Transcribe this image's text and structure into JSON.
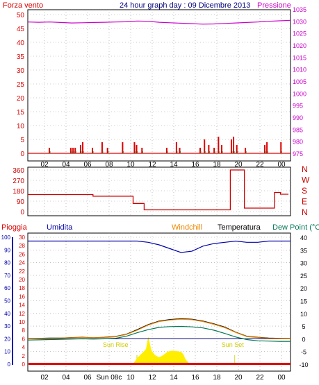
{
  "title": "24 hour graph day : 09 Dicembre 2013",
  "colors": {
    "title": "#000080",
    "wind": "#dd0000",
    "pressure": "#cc00cc",
    "direction": "#cc0000",
    "rain": "#dd0000",
    "humidity": "#0000aa",
    "windchill": "#ee8800",
    "temperature": "#000000",
    "dewpoint": "#007755",
    "grid": "#999999",
    "sun": "#ffee00",
    "sun_label": "#cccc00"
  },
  "panel_top": {
    "left_label": "Forza vento",
    "right_label": "Pressione",
    "left_ticks": [
      "0",
      "5",
      "10",
      "15",
      "20",
      "25",
      "30",
      "35",
      "40",
      "45",
      "50"
    ],
    "right_ticks": [
      "975",
      "980",
      "985",
      "990",
      "995",
      "1000",
      "1005",
      "1010",
      "1015",
      "1020",
      "1025",
      "1030",
      "1035"
    ]
  },
  "panel_mid": {
    "left_ticks": [
      "0",
      "90",
      "180",
      "270",
      "360"
    ],
    "right_labels": [
      "N",
      "W",
      "S",
      "E",
      "N"
    ]
  },
  "panel_bottom": {
    "rain_label": "Pioggia",
    "humidity_label": "Umidita",
    "windchill_label": "Windchill",
    "temperature_label": "Temperatura",
    "dewpoint_label": "Dew Point (°C",
    "rain_ticks": [
      "0",
      "2",
      "4",
      "6",
      "8",
      "10",
      "12",
      "14",
      "16",
      "18",
      "20",
      "22",
      "24",
      "26",
      "28",
      "30"
    ],
    "humidity_ticks": [
      "0",
      "10",
      "20",
      "30",
      "40",
      "50",
      "60",
      "70",
      "80",
      "90",
      "100"
    ],
    "temp_ticks": [
      "-10",
      "-5",
      "0",
      "5",
      "10",
      "15",
      "20",
      "25",
      "30",
      "35",
      "40"
    ],
    "sunrise_label": "Sun Rise",
    "sunset_label": "Sun Set"
  },
  "x_labels_top": [
    "02",
    "04",
    "06",
    "08",
    "10",
    "12",
    "14",
    "16",
    "18",
    "20",
    "22",
    "00"
  ],
  "x_labels_bottom": [
    "02",
    "04",
    "06",
    "Sun 08c",
    "10",
    "12",
    "14",
    "16",
    "18",
    "20",
    "22",
    "00"
  ],
  "chart_data": [
    {
      "type": "line",
      "name": "wind-pressure",
      "x_hours": [
        0,
        1,
        2,
        3,
        4,
        5,
        6,
        7,
        8,
        9,
        10,
        11,
        12,
        13,
        14,
        15,
        16,
        17,
        18,
        19,
        20,
        21,
        22,
        23,
        24
      ],
      "series": [
        {
          "name": "Pressione",
          "axis": "right",
          "values": [
            1029.6,
            1029.5,
            1029.6,
            1029.4,
            1029.2,
            1029.3,
            1029.4,
            1029.5,
            1029.6,
            1029.7,
            1030.0,
            1029.9,
            1029.5,
            1029.3,
            1029.1,
            1028.9,
            1028.7,
            1028.8,
            1029.0,
            1029.2,
            1029.4,
            1029.6,
            1029.9,
            1030.1,
            1030.3
          ]
        }
      ],
      "wind_gusts": [
        {
          "x": 2.0,
          "v": 2
        },
        {
          "x": 4.0,
          "v": 2
        },
        {
          "x": 4.2,
          "v": 2
        },
        {
          "x": 4.4,
          "v": 2
        },
        {
          "x": 4.9,
          "v": 3
        },
        {
          "x": 5.1,
          "v": 4
        },
        {
          "x": 6.0,
          "v": 2
        },
        {
          "x": 6.9,
          "v": 4
        },
        {
          "x": 7.4,
          "v": 2
        },
        {
          "x": 8.8,
          "v": 4
        },
        {
          "x": 9.9,
          "v": 4
        },
        {
          "x": 10.1,
          "v": 3
        },
        {
          "x": 10.6,
          "v": 2
        },
        {
          "x": 12.9,
          "v": 2
        },
        {
          "x": 13.8,
          "v": 4
        },
        {
          "x": 14.1,
          "v": 2
        },
        {
          "x": 16.0,
          "v": 2
        },
        {
          "x": 16.4,
          "v": 5
        },
        {
          "x": 16.8,
          "v": 3
        },
        {
          "x": 17.3,
          "v": 2
        },
        {
          "x": 17.7,
          "v": 6
        },
        {
          "x": 18.0,
          "v": 3
        },
        {
          "x": 18.9,
          "v": 5
        },
        {
          "x": 19.1,
          "v": 6
        },
        {
          "x": 19.4,
          "v": 3
        },
        {
          "x": 20.2,
          "v": 2
        },
        {
          "x": 22.0,
          "v": 3
        },
        {
          "x": 22.2,
          "v": 4
        },
        {
          "x": 23.5,
          "v": 4
        }
      ],
      "ylim_left": [
        0,
        50
      ],
      "ylim_right": [
        975,
        1035
      ]
    },
    {
      "type": "line",
      "name": "wind-direction",
      "x_hours": [
        0,
        6.5,
        6.5,
        10.5,
        10.5,
        11.6,
        11.6,
        20.2,
        20.2,
        21.6,
        21.6,
        24.6,
        24.6,
        25.2,
        25.2,
        26.2
      ],
      "values": [
        147,
        147,
        133,
        133,
        70,
        70,
        15,
        15,
        360,
        360,
        30,
        30,
        165,
        165,
        150,
        150
      ],
      "ylim": [
        0,
        360
      ]
    },
    {
      "type": "line",
      "name": "temperature-humidity",
      "x_hours": [
        0,
        1,
        2,
        3,
        4,
        5,
        6,
        7,
        8,
        9,
        10,
        11,
        12,
        13,
        14,
        15,
        16,
        17,
        18,
        19,
        20,
        21,
        22,
        23,
        24
      ],
      "series": [
        {
          "name": "Umidita",
          "axis": "humidity",
          "values": [
            97,
            97,
            97,
            97,
            97,
            97,
            97,
            97,
            97,
            97,
            97,
            96,
            94,
            91,
            88,
            89,
            93,
            95,
            96,
            97,
            96,
            96,
            97,
            97,
            97
          ]
        },
        {
          "name": "Temperatura",
          "axis": "temp",
          "values": [
            0.1,
            0.2,
            0.3,
            0.3,
            0.5,
            0.6,
            0.4,
            0.6,
            0.9,
            1.8,
            3.6,
            5.6,
            7.0,
            7.6,
            7.9,
            7.7,
            7.0,
            5.9,
            4.6,
            2.6,
            1.0,
            0.6,
            0.3,
            0.2,
            0.1
          ]
        },
        {
          "name": "Windchill",
          "axis": "temp",
          "values": [
            0.0,
            0.1,
            0.2,
            0.3,
            0.4,
            0.5,
            0.4,
            0.5,
            0.8,
            1.7,
            3.4,
            5.4,
            6.8,
            7.4,
            7.7,
            7.5,
            6.8,
            5.7,
            4.4,
            2.5,
            0.9,
            0.5,
            0.2,
            0.1,
            0.0
          ]
        },
        {
          "name": "Dew Point",
          "axis": "temp",
          "values": [
            -0.5,
            -0.4,
            -0.3,
            -0.2,
            -0.1,
            0.0,
            -0.1,
            0.0,
            0.2,
            1.0,
            2.4,
            3.6,
            4.5,
            4.8,
            4.9,
            4.7,
            4.3,
            3.4,
            2.1,
            0.7,
            -0.3,
            -0.8,
            -0.9,
            -1.0,
            -1.0
          ]
        }
      ],
      "sun_x": [
        9.6,
        10.0,
        10.4,
        10.6,
        10.8,
        11.0,
        11.3,
        11.6,
        12.0,
        12.4,
        12.8,
        13.2,
        13.6,
        14.0,
        14.2,
        14.4,
        14.8
      ],
      "sun_v": [
        0,
        1.5,
        2.5,
        3,
        3.6,
        6.5,
        3.2,
        2.2,
        1.6,
        2.2,
        3.0,
        3.2,
        3.1,
        2.9,
        2.4,
        1.2,
        0
      ],
      "sunrise_hour": 8.0,
      "sunset_hour": 17.0,
      "ylim_humidity": [
        0,
        100
      ],
      "ylim_temp": [
        -10,
        40
      ],
      "ylim_rain": [
        0,
        30
      ]
    }
  ]
}
